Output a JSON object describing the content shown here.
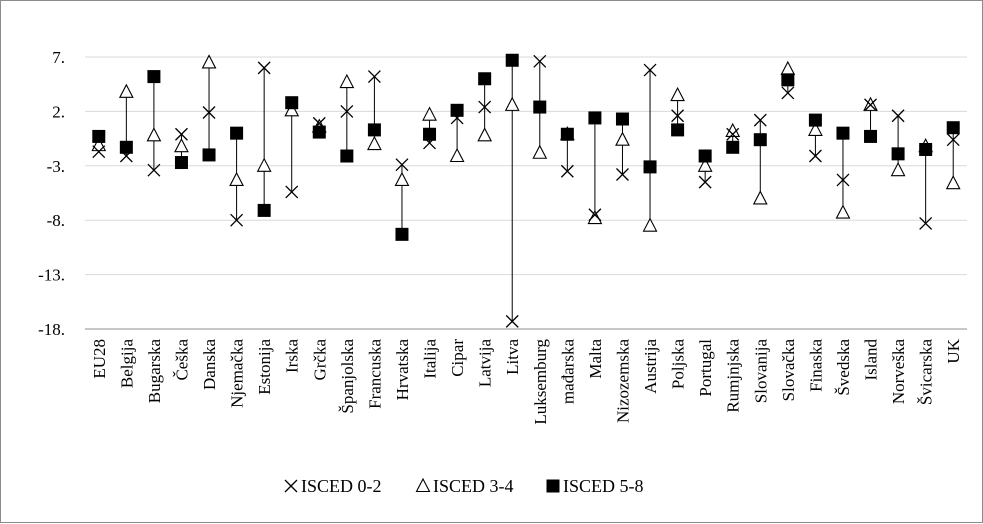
{
  "chart_data": {
    "type": "scatter",
    "title": "",
    "xlabel": "",
    "ylabel": "",
    "ylim": [
      -18,
      7
    ],
    "yticks": [
      "7.",
      "2.",
      "-3.",
      "-8.",
      "-13.",
      "-18."
    ],
    "ytick_values": [
      7,
      2,
      -3,
      -8,
      -13,
      -18
    ],
    "grid": true,
    "legend_position": "bottom",
    "categories": [
      "EU28",
      "Belgija",
      "Bugarska",
      "Češka",
      "Danska",
      "Njemačka",
      "Estonija",
      "Irska",
      "Grčka",
      "Španjolska",
      "Francuska",
      "Hrvatska",
      "Italija",
      "Cipar",
      "Latvija",
      "Litva",
      "Luksemburg",
      "mađarska",
      "Malta",
      "Nizozemska",
      "Austrija",
      "Poljska",
      "Portugal",
      "Rumjnjska",
      "Slovanija",
      "Slovačka",
      "Finaska",
      "Švedska",
      "Island",
      "Norveška",
      "Švicarska",
      "UK"
    ],
    "series": [
      {
        "name": "ISCED 0-2",
        "marker": "x",
        "values": [
          -1.7,
          -2.1,
          -3.4,
          -0.1,
          1.9,
          -8.0,
          6.0,
          -5.4,
          0.9,
          2.0,
          5.2,
          -2.9,
          -0.9,
          1.4,
          2.4,
          -17.3,
          6.6,
          -3.5,
          -7.5,
          -3.8,
          5.8,
          1.6,
          -4.5,
          -0.1,
          1.2,
          3.7,
          -2.1,
          -4.3,
          2.6,
          1.6,
          -8.3,
          -0.6
        ]
      },
      {
        "name": "ISCED 3-4",
        "marker": "triangle",
        "values": [
          -1.1,
          3.8,
          -0.2,
          -1.2,
          6.5,
          -4.3,
          -3.0,
          2.1,
          0.6,
          4.7,
          -1.0,
          -4.3,
          1.7,
          -2.1,
          -0.2,
          2.6,
          -1.8,
          -0.1,
          -7.8,
          -0.6,
          -8.5,
          3.5,
          -3.0,
          0.2,
          -6.0,
          5.9,
          0.3,
          -7.3,
          2.6,
          -3.4,
          -1.2,
          -4.6
        ]
      },
      {
        "name": "ISCED 5-8",
        "marker": "square",
        "values": [
          -0.3,
          -1.3,
          5.2,
          -2.7,
          -2.0,
          0.0,
          -7.1,
          2.8,
          0.1,
          -2.1,
          0.3,
          -9.3,
          -0.1,
          2.1,
          5.0,
          6.7,
          2.4,
          -0.1,
          1.4,
          1.3,
          -3.1,
          0.3,
          -2.1,
          -1.3,
          -0.6,
          4.9,
          1.2,
          0.0,
          -0.3,
          -1.9,
          -1.5,
          0.5
        ]
      }
    ]
  }
}
